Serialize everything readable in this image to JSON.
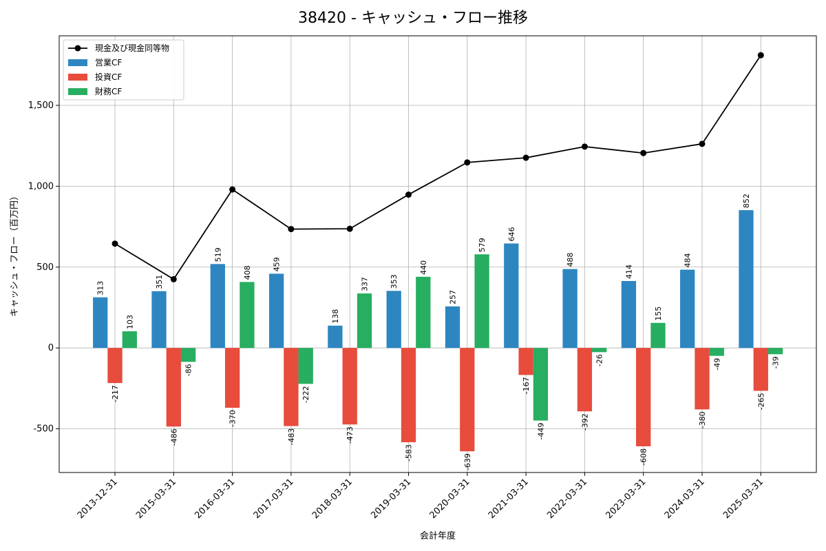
{
  "chart_data": {
    "type": "bar",
    "title": "38420 - キャッシュ・フロー推移",
    "xlabel": "会計年度",
    "ylabel": "キャッシュ・フロー（百万円）",
    "ylim": [
      -770,
      1930
    ],
    "yticks": [
      -500,
      0,
      500,
      1000,
      1500
    ],
    "ytick_labels": [
      "-500",
      "0",
      "500",
      "1,000",
      "1,500"
    ],
    "grid": true,
    "legend_position": "top-left",
    "categories": [
      "2013-12-31",
      "2015-03-31",
      "2016-03-31",
      "2017-03-31",
      "2018-03-31",
      "2019-03-31",
      "2020-03-31",
      "2021-03-31",
      "2022-03-31",
      "2023-03-31",
      "2024-03-31",
      "2025-03-31"
    ],
    "series": [
      {
        "name": "営業CF",
        "kind": "bar",
        "color": "#2e86c1",
        "values": [
          313,
          351,
          519,
          459,
          138,
          353,
          257,
          646,
          488,
          414,
          484,
          852
        ]
      },
      {
        "name": "投資CF",
        "kind": "bar",
        "color": "#e74c3c",
        "values": [
          -217,
          -486,
          -370,
          -483,
          -473,
          -583,
          -639,
          -167,
          -392,
          -608,
          -380,
          -265
        ]
      },
      {
        "name": "財務CF",
        "kind": "bar",
        "color": "#27ae60",
        "values": [
          103,
          -86,
          408,
          -222,
          337,
          440,
          579,
          -449,
          -26,
          155,
          -49,
          -39
        ]
      },
      {
        "name": "現金及び現金同等物",
        "kind": "line",
        "color": "#000000",
        "values": [
          645,
          425,
          980,
          735,
          737,
          948,
          1147,
          1176,
          1245,
          1205,
          1262,
          1810
        ]
      }
    ]
  }
}
